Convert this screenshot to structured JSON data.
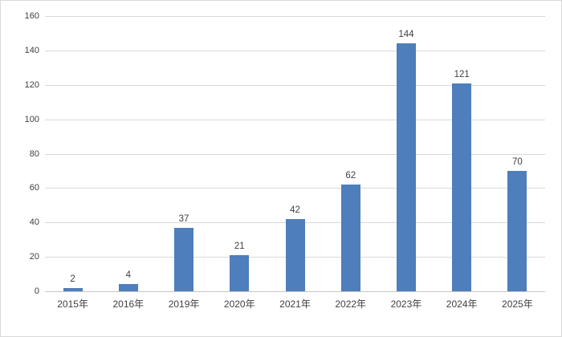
{
  "chart_data": {
    "type": "bar",
    "categories": [
      "2015年",
      "2016年",
      "2019年",
      "2020年",
      "2021年",
      "2022年",
      "2023年",
      "2024年",
      "2025年"
    ],
    "values": [
      2,
      4,
      37,
      21,
      42,
      62,
      144,
      121,
      70
    ],
    "title": "",
    "xlabel": "",
    "ylabel": "",
    "ylim": [
      0,
      160
    ],
    "yticks": [
      0,
      20,
      40,
      60,
      80,
      100,
      120,
      140,
      160
    ],
    "grid": true,
    "legend": false,
    "data_labels": true,
    "colors": {
      "bar_fill": "#4e7ebb",
      "gridline": "#d9d9d9",
      "axis_line": "#c6c6c6",
      "tick_text": "#404040",
      "background": "#ffffff",
      "chart_border": "#d9d9d9"
    }
  }
}
